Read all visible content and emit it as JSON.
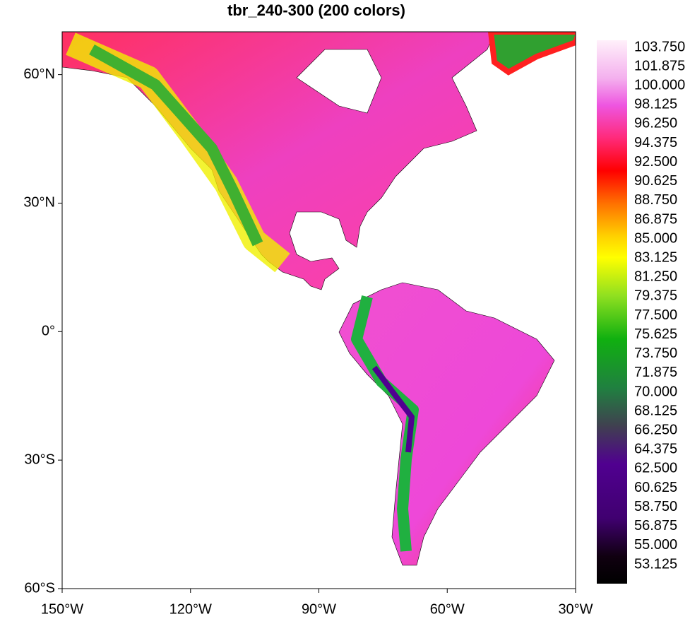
{
  "map": {
    "title": "tbr_240-300 (200 colors)",
    "xlim": [
      -150,
      -30
    ],
    "ylim": [
      -60,
      70
    ],
    "lon_ticks": [
      {
        "value": -150,
        "label": "150°W"
      },
      {
        "value": -120,
        "label": "120°W"
      },
      {
        "value": -90,
        "label": "90°W"
      },
      {
        "value": -60,
        "label": "60°W"
      },
      {
        "value": -30,
        "label": "30°W"
      }
    ],
    "lat_ticks": [
      {
        "value": 60,
        "label": "60°N"
      },
      {
        "value": 30,
        "label": "30°N"
      },
      {
        "value": 0,
        "label": "0°"
      },
      {
        "value": -30,
        "label": "30°S"
      },
      {
        "value": -60,
        "label": "60°S"
      }
    ],
    "colorbar": {
      "levels": [
        {
          "value": 103.75,
          "label": "103.750"
        },
        {
          "value": 101.875,
          "label": "101.875"
        },
        {
          "value": 100,
          "label": "100.000"
        },
        {
          "value": 98.125,
          "label": "98.125"
        },
        {
          "value": 96.25,
          "label": "96.250"
        },
        {
          "value": 94.375,
          "label": "94.375"
        },
        {
          "value": 92.5,
          "label": "92.500"
        },
        {
          "value": 90.625,
          "label": "90.625"
        },
        {
          "value": 88.75,
          "label": "88.750"
        },
        {
          "value": 86.875,
          "label": "86.875"
        },
        {
          "value": 85,
          "label": "85.000"
        },
        {
          "value": 83.125,
          "label": "83.125"
        },
        {
          "value": 81.25,
          "label": "81.250"
        },
        {
          "value": 79.375,
          "label": "79.375"
        },
        {
          "value": 77.5,
          "label": "77.500"
        },
        {
          "value": 75.625,
          "label": "75.625"
        },
        {
          "value": 73.75,
          "label": "73.750"
        },
        {
          "value": 71.875,
          "label": "71.875"
        },
        {
          "value": 70,
          "label": "70.000"
        },
        {
          "value": 68.125,
          "label": "68.125"
        },
        {
          "value": 66.25,
          "label": "66.250"
        },
        {
          "value": 64.375,
          "label": "64.375"
        },
        {
          "value": 62.5,
          "label": "62.500"
        },
        {
          "value": 60.625,
          "label": "60.625"
        },
        {
          "value": 58.75,
          "label": "58.750"
        },
        {
          "value": 56.875,
          "label": "56.875"
        },
        {
          "value": 55,
          "label": "55.000"
        },
        {
          "value": 53.125,
          "label": "53.125"
        }
      ]
    }
  }
}
